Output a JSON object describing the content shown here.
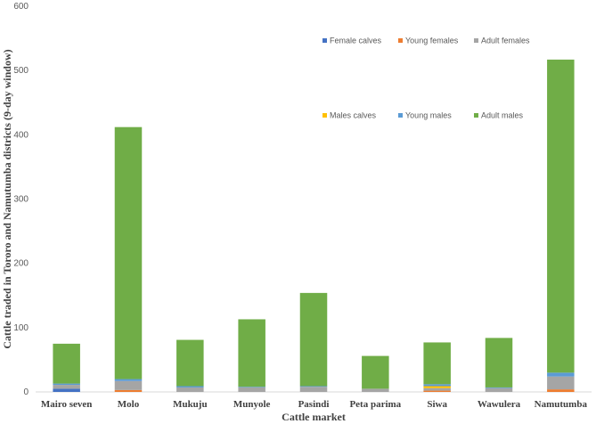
{
  "chart_data": {
    "type": "bar",
    "stacked": true,
    "title": "",
    "xlabel": "Cattle market",
    "ylabel": "Cattle traded in Tororo and Namutumba districts (9-day window)",
    "ylim": [
      0,
      600
    ],
    "yticks": [
      0,
      100,
      200,
      300,
      400,
      500,
      600
    ],
    "grid": false,
    "categories": [
      "Mairo seven",
      "Molo",
      "Mukuju",
      "Munyole",
      "Pasindi",
      "Peta parima",
      "Siwa",
      "Wawulera",
      "Namutumba"
    ],
    "series": [
      {
        "name": "Female calves",
        "color": "#4472C4",
        "values": [
          5,
          0,
          0,
          0,
          0,
          0,
          0,
          0,
          0
        ]
      },
      {
        "name": "Young females",
        "color": "#ED7D31",
        "values": [
          0,
          3,
          0,
          0,
          0,
          0,
          2,
          0,
          4
        ]
      },
      {
        "name": "Adult females",
        "color": "#A5A5A5",
        "values": [
          6,
          14,
          7,
          7,
          8,
          5,
          4,
          6,
          20
        ]
      },
      {
        "name": "Males calves",
        "color": "#FFC000",
        "values": [
          0,
          0,
          0,
          0,
          0,
          0,
          3,
          0,
          0
        ]
      },
      {
        "name": "Young males",
        "color": "#5B9BD5",
        "values": [
          2,
          3,
          2,
          1,
          1,
          0,
          3,
          1,
          6
        ]
      },
      {
        "name": "Adult males",
        "color": "#70AD47",
        "values": [
          62,
          392,
          72,
          105,
          145,
          51,
          65,
          77,
          487
        ]
      }
    ],
    "legends": [
      {
        "placement": "upper-right",
        "entries": [
          "Female calves",
          "Young females",
          "Adult females"
        ]
      },
      {
        "placement": "middle-right",
        "entries": [
          "Males calves",
          "Young males",
          "Adult males"
        ]
      }
    ]
  }
}
